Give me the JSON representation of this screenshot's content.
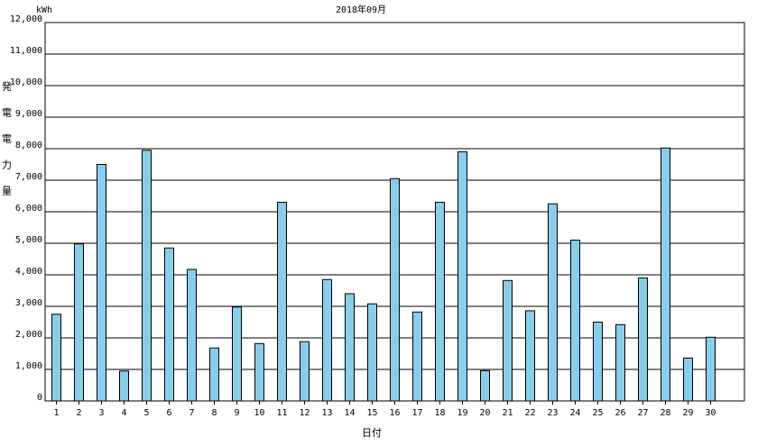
{
  "chart_data": {
    "type": "bar",
    "title": "2018年09月",
    "y_unit": "kWh",
    "y_label": "発電電力量",
    "x_label": "日付",
    "categories": [
      "1",
      "2",
      "3",
      "4",
      "5",
      "6",
      "7",
      "8",
      "9",
      "10",
      "11",
      "12",
      "13",
      "14",
      "15",
      "16",
      "17",
      "18",
      "19",
      "20",
      "21",
      "22",
      "23",
      "24",
      "25",
      "26",
      "27",
      "28",
      "29",
      "30"
    ],
    "values": [
      2750,
      4980,
      7500,
      950,
      7950,
      4850,
      4170,
      1680,
      2980,
      1820,
      6300,
      1880,
      3850,
      3400,
      3080,
      7050,
      2820,
      6300,
      7900,
      960,
      3820,
      2860,
      6250,
      5100,
      2500,
      2420,
      3900,
      8020,
      1360,
      2020
    ],
    "color": "#87ceeb",
    "ylim": [
      0,
      12000
    ],
    "yticks": [
      0,
      {
        "value": 1000,
        "label": "1,000"
      },
      {
        "value": 2000,
        "label": "2,000"
      },
      {
        "value": 3000,
        "label": "3,000"
      },
      {
        "value": 4000,
        "label": "4,000"
      },
      {
        "value": 5000,
        "label": "5,000"
      },
      {
        "value": 6000,
        "label": "6,000"
      },
      {
        "value": 7000,
        "label": "7,000"
      },
      {
        "value": 8000,
        "label": "8,000"
      },
      {
        "value": 9000,
        "label": "9,000"
      },
      {
        "value": 10000,
        "label": "10,000"
      },
      {
        "value": 11000,
        "label": "11,000"
      },
      {
        "value": 12000,
        "label": "12,000"
      }
    ],
    "grid": true
  }
}
